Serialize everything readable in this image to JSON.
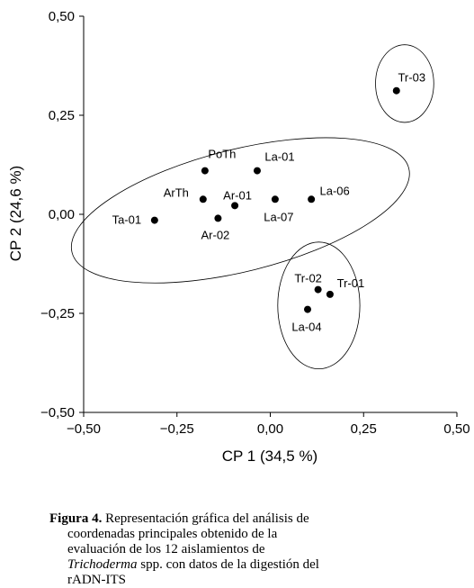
{
  "chart_data": {
    "type": "scatter",
    "xlabel": "CP 1 (34,5 %)",
    "ylabel": "CP 2 (24,6 %)",
    "xlim": [
      -0.5,
      0.5
    ],
    "ylim": [
      -0.5,
      0.5
    ],
    "xticks": [
      "−0,50",
      "−0,25",
      "0,00",
      "0,25",
      "0,50"
    ],
    "yticks": [
      "−0,50",
      "−0,25",
      "0,00",
      "0,25",
      "0,50"
    ],
    "grid": false,
    "points": [
      {
        "label": "Tr-03",
        "x": 0.338,
        "y": 0.312
      },
      {
        "label": "PoTh",
        "x": -0.175,
        "y": 0.11
      },
      {
        "label": "La-01",
        "x": -0.035,
        "y": 0.11
      },
      {
        "label": "ArTh",
        "x": -0.18,
        "y": 0.038
      },
      {
        "label": "Ar-01",
        "x": -0.095,
        "y": 0.022
      },
      {
        "label": "La-07",
        "x": 0.013,
        "y": 0.038
      },
      {
        "label": "La-06",
        "x": 0.11,
        "y": 0.038
      },
      {
        "label": "Ta-01",
        "x": -0.31,
        "y": -0.015
      },
      {
        "label": "Ar-02",
        "x": -0.14,
        "y": -0.01
      },
      {
        "label": "Tr-02",
        "x": 0.128,
        "y": -0.19
      },
      {
        "label": "Tr-01",
        "x": 0.16,
        "y": -0.202
      },
      {
        "label": "La-04",
        "x": 0.1,
        "y": -0.24
      }
    ],
    "groups": [
      {
        "members": [
          "Tr-03"
        ],
        "cx": 0.36,
        "cy": 0.33,
        "rx": 0.078,
        "ry": 0.098
      },
      {
        "members": [
          "PoTh",
          "La-01",
          "ArTh",
          "Ar-01",
          "La-07",
          "La-06",
          "Ta-01",
          "Ar-02"
        ],
        "cx": -0.08,
        "cy": 0.01,
        "rx": 0.465,
        "ry": 0.154,
        "rot": -14
      },
      {
        "members": [
          "Tr-02",
          "Tr-01",
          "La-04"
        ],
        "cx": 0.13,
        "cy": -0.23,
        "rx": 0.11,
        "ry": 0.16
      }
    ]
  },
  "caption": {
    "label": "Figura 4.",
    "lines": [
      " Representación gráfica del análisis de",
      "coordenadas principales obtenido de la",
      "evaluación de los 12 aislamientos de",
      "",
      "rADN-ITS"
    ],
    "italic_term": "Trichoderma",
    "after_italic": " spp. con datos de la digestión del"
  }
}
